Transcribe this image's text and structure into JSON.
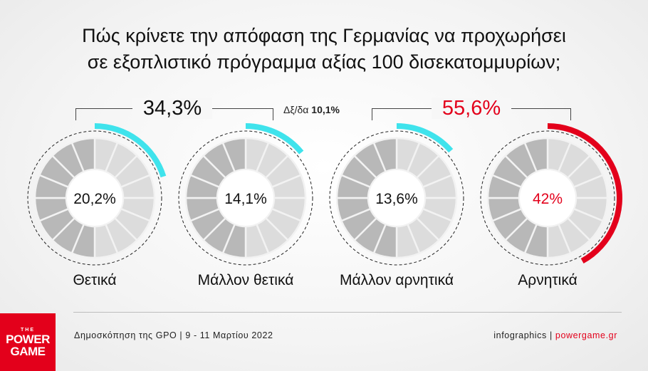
{
  "title": {
    "line1": "Πώς κρίνετε την απόφαση της Γερμανίας να προχωρήσει",
    "line2": "σε εξοπλιστικό πρόγραμμα αξίας 100 δισεκατομμυρίων;"
  },
  "groups": {
    "positive_total": "34,3%",
    "negative_total": "55,6%",
    "dk_label": "Δξ/δα",
    "dk_value": "10,1%"
  },
  "colors": {
    "positive": "#3fe3ec",
    "negative": "#e3001b",
    "text": "#111111"
  },
  "chart_data": {
    "type": "pie",
    "categories": [
      "Θετικά",
      "Μάλλον θετικά",
      "Μάλλον αρνητικά",
      "Αρνητικά"
    ],
    "values": [
      20.2,
      14.1,
      13.6,
      42
    ],
    "value_labels": [
      "20,2%",
      "14,1%",
      "13,6%",
      "42%"
    ],
    "group_totals": [
      {
        "label": "34,3%",
        "categories": [
          "Θετικά",
          "Μάλλον θετικά"
        ]
      },
      {
        "label": "55,6%",
        "categories": [
          "Μάλλον αρνητικά",
          "Αρνητικά"
        ]
      }
    ],
    "other": {
      "label": "Δξ/δα",
      "value": 10.1
    }
  },
  "footer": {
    "source": "Δημοσκόπηση της GPO | 9 - 11 Μαρτίου 2022",
    "credit_prefix": "infographics | ",
    "site": "powergame.gr"
  },
  "logo": {
    "the": "THE",
    "line1": "POWER",
    "line2": "GAME"
  }
}
